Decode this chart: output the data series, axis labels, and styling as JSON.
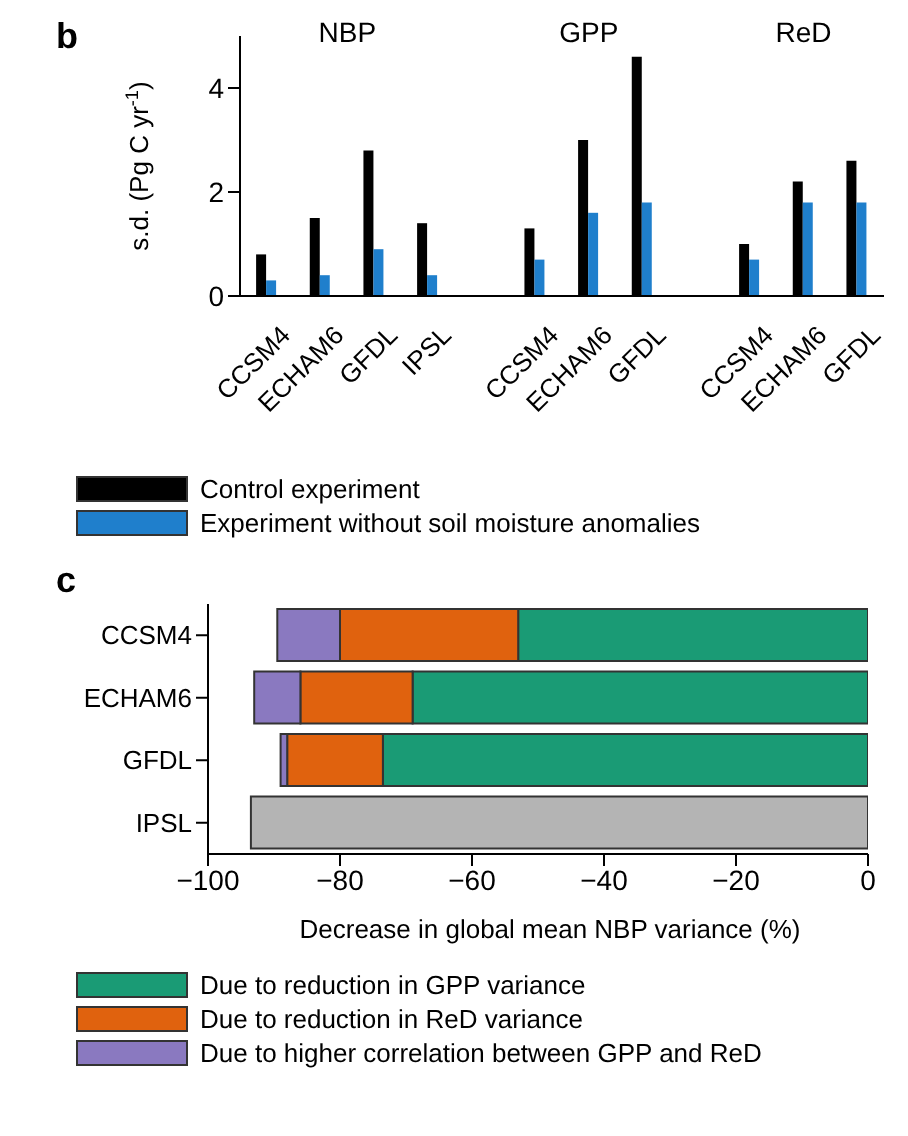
{
  "chart_data": [
    {
      "type": "bar",
      "title": "b",
      "ylabel": "s.d. (Pg C yr$^{-1}$)",
      "categories": [
        "CCSM4",
        "ECHAM6",
        "GFDL",
        "IPSL",
        null,
        "CCSM4",
        "ECHAM6",
        "GFDL",
        null,
        "CCSM4",
        "ECHAM6",
        "GFDL"
      ],
      "series": [
        {
          "name": "Control experiment",
          "color": "#000000",
          "values": [
            0.8,
            1.5,
            2.8,
            1.4,
            null,
            1.3,
            3.0,
            4.6,
            null,
            1.0,
            2.2,
            2.6
          ]
        },
        {
          "name": "Experiment without soil moisture anomalies",
          "color": "#1f7fcc",
          "values": [
            0.3,
            0.4,
            0.9,
            0.4,
            null,
            0.7,
            1.6,
            1.8,
            null,
            0.7,
            1.8,
            1.8
          ]
        }
      ],
      "annotations": [
        "NBP",
        "GPP",
        "ReD"
      ],
      "ylim": [
        0,
        5
      ],
      "yticks": [
        0,
        2,
        4
      ],
      "legend": "bottom"
    },
    {
      "type": "bar",
      "title": "c",
      "orientation": "horizontal",
      "stacked": true,
      "xlabel": "Decrease in global mean NBP variance (%)",
      "categories": [
        "CCSM4",
        "ECHAM6",
        "GFDL",
        "IPSL"
      ],
      "series": [
        {
          "name": "Due to reduction in GPP variance",
          "color": "#1a9b75",
          "values": [
            -53,
            -69,
            -73.5,
            null
          ]
        },
        {
          "name": "Due to reduction in ReD variance",
          "color": "#e0620e",
          "values": [
            -27,
            -17,
            -14.5,
            null
          ]
        },
        {
          "name": "Due to higher correlation between GPP and ReD",
          "color": "#8a79c0",
          "values": [
            -9.5,
            -7,
            -1,
            null
          ]
        },
        {
          "color": "#b4b4b4",
          "values": [
            null,
            null,
            null,
            -93.5
          ]
        }
      ],
      "xlim": [
        -100,
        0
      ],
      "xticks": [
        {
          "value": -100,
          "label": "−100"
        },
        {
          "value": -80,
          "label": "−80"
        },
        {
          "value": -60,
          "label": "−60"
        },
        {
          "value": -40,
          "label": "−40"
        },
        {
          "value": -20,
          "label": "−20"
        },
        0
      ],
      "legend": "bottom"
    }
  ]
}
